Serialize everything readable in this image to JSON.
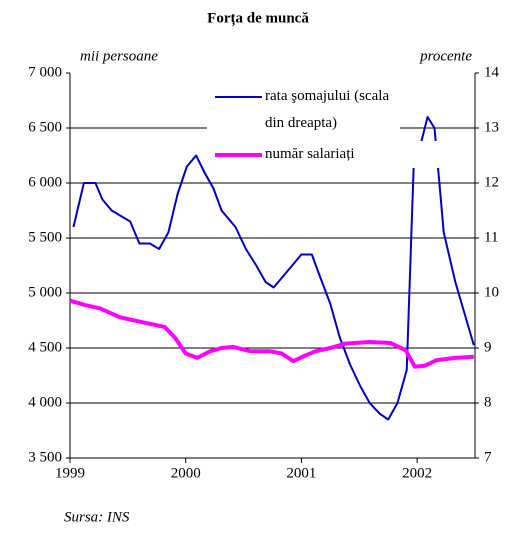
{
  "chart_data": {
    "type": "line",
    "title": "Forța de muncă",
    "ylabel": "mii persoane",
    "y2label": "procente",
    "source": "Sursa: INS",
    "xlim": [
      1999,
      2002.5
    ],
    "xticks": [
      1999,
      2000,
      2001,
      2002
    ],
    "ylim": [
      3500,
      7000
    ],
    "yticks": [
      {
        "value": 3500,
        "label": "3 500"
      },
      {
        "value": 4000,
        "label": "4 000"
      },
      {
        "value": 4500,
        "label": "4 500"
      },
      {
        "value": 5000,
        "label": "5 000"
      },
      {
        "value": 5500,
        "label": "5 500"
      },
      {
        "value": 6000,
        "label": "6 000"
      },
      {
        "value": 6500,
        "label": "6 500"
      },
      {
        "value": 7000,
        "label": "7 000"
      }
    ],
    "y2lim": [
      7,
      14
    ],
    "y2ticks": [
      7,
      8,
      9,
      10,
      11,
      12,
      13,
      14
    ],
    "grid": true,
    "series": [
      {
        "name": "rata şomajului (scala din dreapta)",
        "color": "#0000cc",
        "axis": "y2",
        "x": [
          1999.03,
          1999.12,
          1999.22,
          1999.28,
          1999.36,
          1999.52,
          1999.6,
          1999.69,
          1999.77,
          1999.85,
          1999.93,
          2000.01,
          2000.09,
          2000.16,
          2000.24,
          2000.31,
          2000.43,
          2000.52,
          2000.61,
          2000.69,
          2000.76,
          2000.88,
          2001.0,
          2001.09,
          2001.16,
          2001.25,
          2001.33,
          2001.42,
          2001.51,
          2001.59,
          2001.68,
          2001.75,
          2001.83,
          2001.91,
          2001.97,
          2002.03,
          2002.09,
          2002.15,
          2002.23,
          2002.33,
          2002.49
        ],
        "values": [
          11.2,
          12.0,
          12.0,
          11.7,
          11.5,
          11.3,
          10.9,
          10.9,
          10.8,
          11.1,
          11.8,
          12.3,
          12.5,
          12.2,
          11.9,
          11.5,
          11.2,
          10.8,
          10.5,
          10.2,
          10.1,
          10.4,
          10.7,
          10.7,
          10.3,
          9.8,
          9.2,
          8.7,
          8.3,
          8.0,
          7.8,
          7.7,
          8.0,
          8.6,
          12.3,
          12.7,
          13.2,
          13.0,
          11.1,
          10.2,
          9.05
        ]
      },
      {
        "name": "număr salariați",
        "color": "#ff00ff",
        "axis": "y",
        "x": [
          1999.0,
          1999.13,
          1999.26,
          1999.43,
          1999.6,
          1999.82,
          1999.91,
          2000.0,
          2000.1,
          2000.21,
          2000.31,
          2000.41,
          2000.56,
          2000.73,
          2000.83,
          2000.93,
          2001.03,
          2001.12,
          2001.25,
          2001.38,
          2001.59,
          2001.77,
          2001.9,
          2001.98,
          2002.07,
          2002.17,
          2002.33,
          2002.49
        ],
        "values": [
          4930,
          4890,
          4860,
          4780,
          4740,
          4690,
          4590,
          4450,
          4410,
          4470,
          4500,
          4510,
          4470,
          4470,
          4450,
          4380,
          4430,
          4470,
          4500,
          4540,
          4555,
          4545,
          4480,
          4330,
          4340,
          4390,
          4410,
          4420
        ]
      }
    ]
  }
}
